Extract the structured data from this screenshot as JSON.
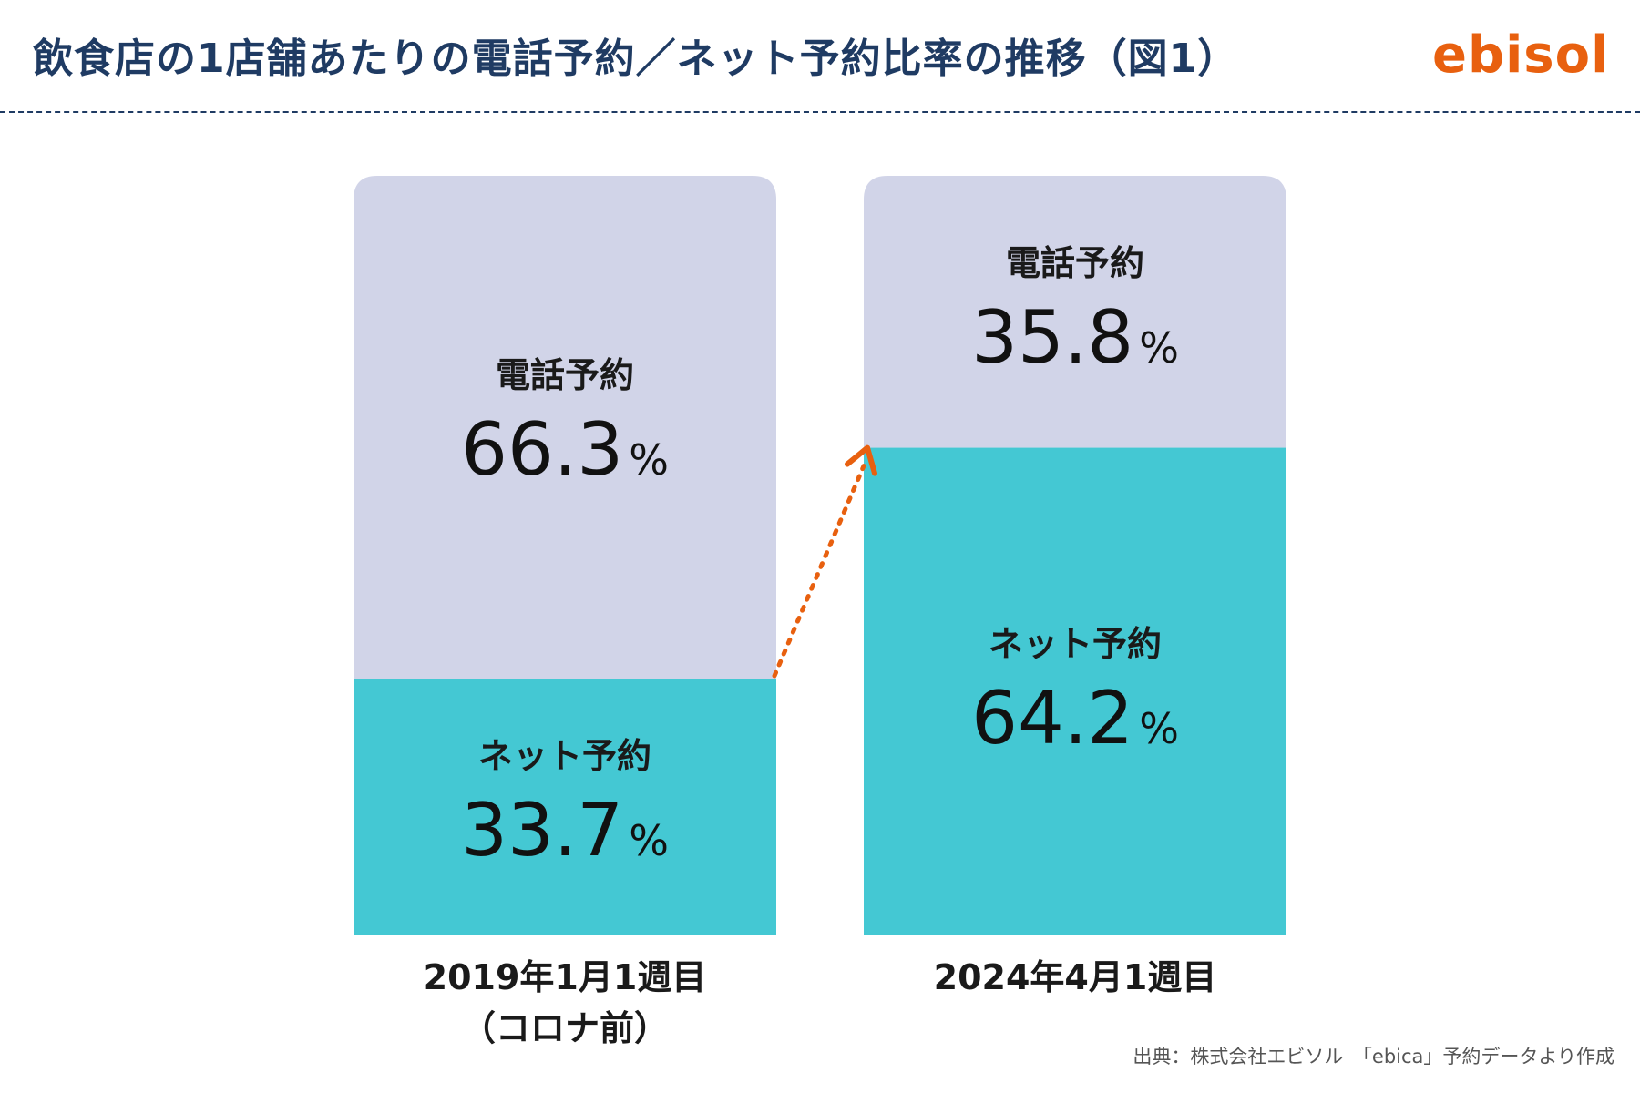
{
  "header": {
    "title": "飲食店の1店舗あたりの電話予約／ネット予約比率の推移（図1）",
    "logo_text": "ebisol"
  },
  "colors": {
    "phone": "#d1d4e8",
    "net": "#44c8d3",
    "arrow": "#e8600f",
    "title": "#1f3b63",
    "logo": "#e8600f"
  },
  "chart_data": {
    "type": "bar",
    "stacked": true,
    "normalized": true,
    "categories": [
      "2019年1月1週目（コロナ前）",
      "2024年4月1週目"
    ],
    "category_lines": [
      [
        "2019年1月1週目",
        "（コロナ前）"
      ],
      [
        "2024年4月1週目"
      ]
    ],
    "unit": "%",
    "series": [
      {
        "name": "ネット予約",
        "values": [
          33.7,
          64.2
        ],
        "value_labels": [
          "33.7",
          "64.2"
        ]
      },
      {
        "name": "電話予約",
        "values": [
          66.3,
          35.8
        ],
        "value_labels": [
          "66.3",
          "35.8"
        ]
      }
    ],
    "annotations": [
      "dotted arrow from 2019 ネット予約 level to 2024 ネット予約 level"
    ],
    "ylim": [
      0,
      100
    ]
  },
  "source": "出典：株式会社エビソル　「ebica」予約データより作成"
}
